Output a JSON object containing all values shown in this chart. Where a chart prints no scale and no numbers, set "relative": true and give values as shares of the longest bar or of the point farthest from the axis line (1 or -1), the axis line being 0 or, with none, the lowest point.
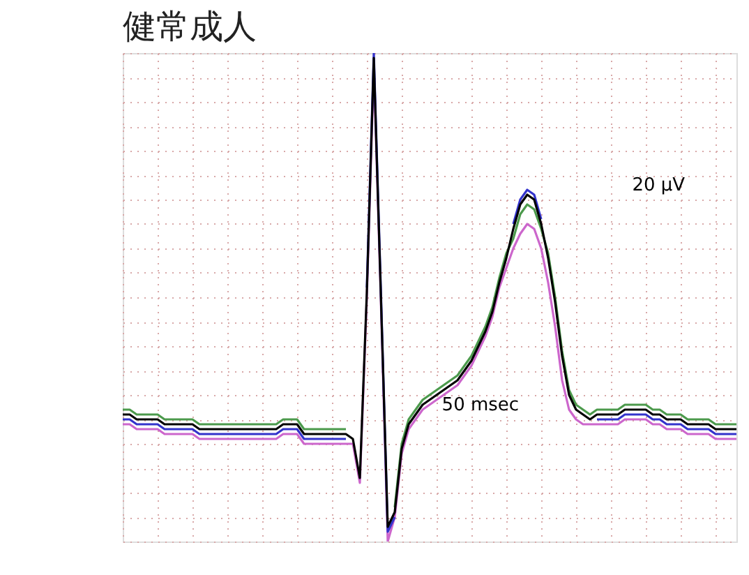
{
  "chart_data": {
    "type": "line",
    "title": "健常成人",
    "relative": true,
    "grid": true,
    "tick_labels": false,
    "annotations": [
      "20 μV",
      "50 msec"
    ],
    "categories": [
      null,
      null,
      null,
      null,
      null,
      null,
      null,
      null,
      null,
      null,
      null,
      null,
      null,
      null,
      null,
      null,
      null,
      null,
      null,
      null,
      null,
      null,
      null,
      null,
      null,
      null,
      null,
      null,
      null,
      null,
      null,
      null,
      null,
      null,
      null,
      null,
      null,
      null,
      null,
      null,
      null,
      null,
      null,
      null,
      null,
      null,
      null,
      null,
      null,
      null,
      null,
      null,
      null,
      null,
      null,
      null,
      null,
      null,
      null,
      null,
      null,
      null,
      null,
      null,
      null,
      null,
      null,
      null,
      null,
      null,
      null,
      null,
      null,
      null,
      null,
      null,
      null,
      null,
      null,
      null,
      null,
      null,
      null,
      null,
      null,
      null,
      null,
      null,
      null
    ],
    "series": [
      {
        "color": "#cc66cc",
        "values": [
          0.24,
          0.24,
          0.23,
          0.23,
          0.23,
          0.23,
          0.22,
          0.22,
          0.22,
          0.22,
          0.22,
          0.21,
          0.21,
          0.21,
          0.21,
          0.21,
          0.21,
          0.21,
          0.21,
          0.21,
          0.21,
          0.21,
          0.21,
          0.22,
          0.22,
          0.22,
          0.2,
          0.2,
          0.2,
          0.2,
          0.2,
          0.2,
          0.2,
          0.2,
          0.12,
          0.5,
          0.97,
          0.5,
          0.0,
          0.05,
          0.18,
          0.23,
          0.25,
          0.27,
          0.28,
          0.29,
          0.3,
          0.31,
          0.32,
          0.34,
          0.36,
          0.39,
          0.42,
          0.46,
          0.52,
          0.56,
          0.6,
          0.63,
          0.65,
          0.64,
          0.6,
          0.53,
          0.44,
          0.33,
          0.27,
          0.25,
          0.24,
          0.24,
          0.24,
          0.24,
          0.24,
          0.24,
          0.25,
          0.25,
          0.25,
          0.25,
          0.24,
          0.24,
          0.23,
          0.23,
          0.23,
          0.22,
          0.22,
          0.22,
          0.22,
          0.21,
          0.21,
          0.21,
          0.21
        ]
      },
      {
        "color": "#4c9a4c",
        "values": [
          0.27,
          0.27,
          0.26,
          0.26,
          0.26,
          0.26,
          0.25,
          0.25,
          0.25,
          0.25,
          0.25,
          0.24,
          0.24,
          0.24,
          0.24,
          0.24,
          0.24,
          0.24,
          0.24,
          0.24,
          0.24,
          0.24,
          0.24,
          0.25,
          0.25,
          0.25,
          0.23,
          0.23,
          0.23,
          0.23,
          0.23,
          0.23,
          0.23,
          null,
          null,
          null,
          null,
          null,
          null,
          0.07,
          0.2,
          0.25,
          0.27,
          0.29,
          0.3,
          0.31,
          0.32,
          0.33,
          0.34,
          0.36,
          0.38,
          0.41,
          0.44,
          0.48,
          0.54,
          0.59,
          0.62,
          0.67,
          0.69,
          0.68,
          0.64,
          0.59,
          0.5,
          0.39,
          0.31,
          0.28,
          0.27,
          0.26,
          0.27,
          0.27,
          0.27,
          0.27,
          0.28,
          0.28,
          0.28,
          0.28,
          0.27,
          0.27,
          0.26,
          0.26,
          0.26,
          0.25,
          0.25,
          0.25,
          0.25,
          0.24,
          0.24,
          0.24,
          0.24
        ]
      },
      {
        "color": "#3333cc",
        "values": [
          0.25,
          0.25,
          0.24,
          0.24,
          0.24,
          0.24,
          0.23,
          0.23,
          0.23,
          0.23,
          0.23,
          0.22,
          0.22,
          0.22,
          0.22,
          0.22,
          0.22,
          0.22,
          0.22,
          0.22,
          0.22,
          0.22,
          0.22,
          0.23,
          0.23,
          0.23,
          0.21,
          0.21,
          0.21,
          0.21,
          0.21,
          0.21,
          0.21,
          null,
          null,
          0.52,
          1.0,
          0.52,
          0.02,
          0.05,
          null,
          null,
          null,
          null,
          null,
          null,
          null,
          null,
          null,
          null,
          null,
          null,
          null,
          null,
          null,
          null,
          0.65,
          0.7,
          0.72,
          0.71,
          0.66,
          null,
          null,
          null,
          null,
          null,
          null,
          null,
          0.25,
          0.25,
          0.25,
          0.25,
          0.26,
          0.26,
          0.26,
          0.26,
          0.25,
          0.25,
          0.24,
          0.24,
          0.24,
          0.23,
          0.23,
          0.23,
          0.23,
          0.22,
          0.22,
          0.22,
          0.22
        ]
      },
      {
        "color": "#000000",
        "values": [
          0.26,
          0.26,
          0.25,
          0.25,
          0.25,
          0.25,
          0.24,
          0.24,
          0.24,
          0.24,
          0.24,
          0.23,
          0.23,
          0.23,
          0.23,
          0.23,
          0.23,
          0.23,
          0.23,
          0.23,
          0.23,
          0.23,
          0.23,
          0.24,
          0.24,
          0.24,
          0.22,
          0.22,
          0.22,
          0.22,
          0.22,
          0.22,
          0.22,
          0.21,
          0.13,
          0.51,
          0.99,
          0.51,
          0.03,
          0.06,
          0.19,
          0.24,
          0.26,
          0.28,
          0.29,
          0.3,
          0.31,
          0.32,
          0.33,
          0.35,
          0.37,
          0.4,
          0.43,
          0.47,
          0.53,
          0.58,
          0.64,
          0.69,
          0.71,
          0.7,
          0.65,
          0.58,
          0.49,
          0.38,
          0.3,
          0.27,
          0.26,
          0.25,
          0.26,
          0.26,
          0.26,
          0.26,
          0.27,
          0.27,
          0.27,
          0.27,
          0.26,
          0.26,
          0.25,
          0.25,
          0.25,
          0.24,
          0.24,
          0.24,
          0.24,
          0.23,
          0.23,
          0.23,
          0.23
        ]
      }
    ]
  }
}
